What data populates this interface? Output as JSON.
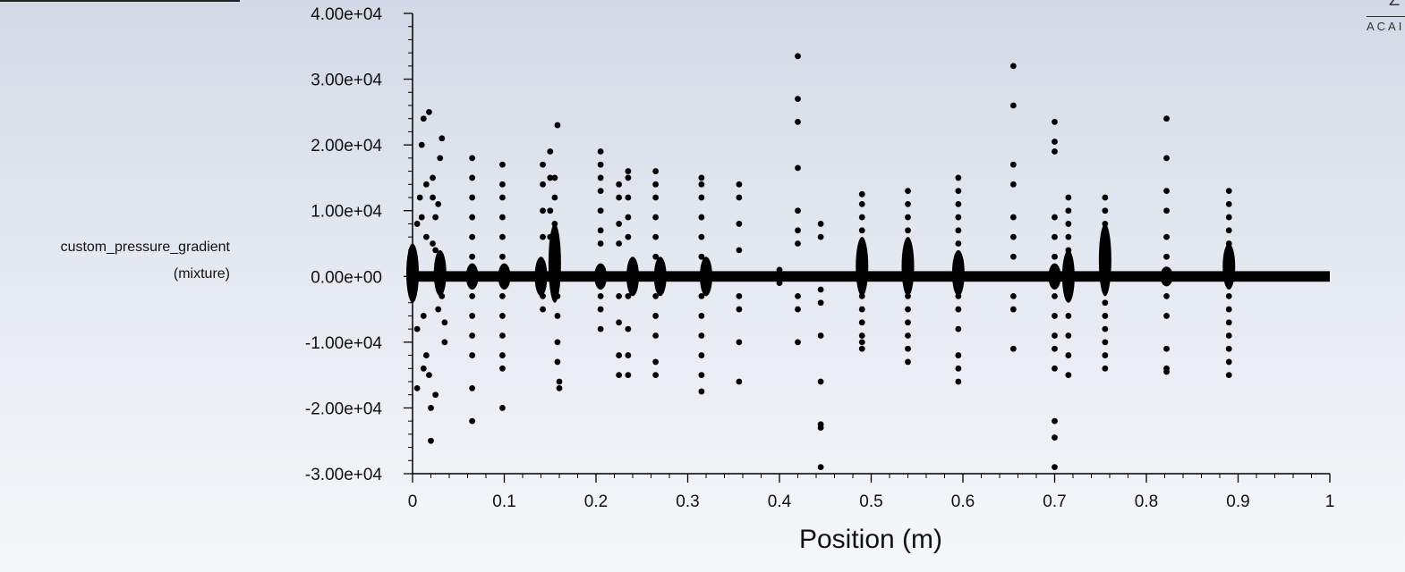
{
  "ylabel_lines": [
    "custom_pressure_gradient",
    "(mixture)"
  ],
  "corner_logo": {
    "top": "Z",
    "bottom": "ACAI"
  },
  "chart_data": {
    "type": "scatter",
    "title": "",
    "xlabel": "Position (m)",
    "ylabel": "custom_pressure_gradient (mixture)",
    "xlim": [
      0,
      1
    ],
    "ylim": [
      -30000,
      40000
    ],
    "x_ticks": [
      0,
      0.1,
      0.2,
      0.3,
      0.4,
      0.5,
      0.6,
      0.7,
      0.8,
      0.9,
      1
    ],
    "x_tick_labels": [
      "0",
      "0.1",
      "0.2",
      "0.3",
      "0.4",
      "0.5",
      "0.6",
      "0.7",
      "0.8",
      "0.9",
      "1"
    ],
    "y_ticks": [
      -30000,
      -20000,
      -10000,
      0,
      10000,
      20000,
      30000,
      40000
    ],
    "y_tick_labels": [
      "-3.00e+04",
      "-2.00e+04",
      "-1.00e+04",
      "0.00e+00",
      "1.00e+04",
      "2.00e+04",
      "3.00e+04",
      "4.00e+04"
    ],
    "marker_color": "#000000",
    "grid": false,
    "legend": "none",
    "baseline": {
      "x_range": [
        0,
        1
      ],
      "y": 0,
      "band_amplitude": 800
    },
    "x": [
      0.005,
      0.005,
      0.008,
      0.01,
      0.012,
      0.015,
      0.018,
      0.02,
      0.022,
      0.025,
      0.028,
      0.03,
      0.032,
      0.035,
      0.01,
      0.012,
      0.015,
      0.018,
      0.02,
      0.022,
      0.025,
      0.028,
      0.03,
      0.032,
      0.005,
      0.015,
      0.025,
      0.035,
      0.012,
      0.022,
      0.065,
      0.065,
      0.065,
      0.065,
      0.065,
      0.065,
      0.065,
      0.065,
      0.065,
      0.065,
      0.065,
      0.065,
      0.098,
      0.098,
      0.098,
      0.098,
      0.098,
      0.098,
      0.098,
      0.098,
      0.098,
      0.098,
      0.098,
      0.098,
      0.142,
      0.142,
      0.142,
      0.142,
      0.142,
      0.142,
      0.15,
      0.15,
      0.15,
      0.15,
      0.155,
      0.155,
      0.155,
      0.158,
      0.158,
      0.158,
      0.158,
      0.158,
      0.16,
      0.16,
      0.205,
      0.205,
      0.205,
      0.205,
      0.205,
      0.205,
      0.205,
      0.205,
      0.205,
      0.205,
      0.225,
      0.225,
      0.225,
      0.225,
      0.225,
      0.225,
      0.225,
      0.225,
      0.235,
      0.235,
      0.235,
      0.235,
      0.235,
      0.235,
      0.235,
      0.235,
      0.235,
      0.265,
      0.265,
      0.265,
      0.265,
      0.265,
      0.265,
      0.265,
      0.265,
      0.265,
      0.265,
      0.265,
      0.315,
      0.315,
      0.315,
      0.315,
      0.315,
      0.315,
      0.315,
      0.315,
      0.315,
      0.315,
      0.315,
      0.315,
      0.356,
      0.356,
      0.356,
      0.356,
      0.356,
      0.356,
      0.356,
      0.356,
      0.4,
      0.4,
      0.4,
      0.42,
      0.42,
      0.42,
      0.42,
      0.42,
      0.42,
      0.42,
      0.42,
      0.42,
      0.42,
      0.445,
      0.445,
      0.445,
      0.445,
      0.445,
      0.445,
      0.445,
      0.445,
      0.445,
      0.49,
      0.49,
      0.49,
      0.49,
      0.49,
      0.49,
      0.49,
      0.49,
      0.49,
      0.49,
      0.49,
      0.49,
      0.54,
      0.54,
      0.54,
      0.54,
      0.54,
      0.54,
      0.54,
      0.54,
      0.54,
      0.54,
      0.54,
      0.54,
      0.595,
      0.595,
      0.595,
      0.595,
      0.595,
      0.595,
      0.595,
      0.595,
      0.595,
      0.595,
      0.595,
      0.595,
      0.655,
      0.655,
      0.655,
      0.655,
      0.655,
      0.655,
      0.655,
      0.655,
      0.655,
      0.655,
      0.7,
      0.7,
      0.7,
      0.7,
      0.7,
      0.7,
      0.7,
      0.7,
      0.7,
      0.7,
      0.7,
      0.7,
      0.7,
      0.7,
      0.715,
      0.715,
      0.715,
      0.715,
      0.715,
      0.715,
      0.715,
      0.715,
      0.715,
      0.715,
      0.755,
      0.755,
      0.755,
      0.755,
      0.755,
      0.755,
      0.755,
      0.755,
      0.755,
      0.755,
      0.755,
      0.755,
      0.755,
      0.822,
      0.822,
      0.822,
      0.822,
      0.822,
      0.822,
      0.822,
      0.822,
      0.822,
      0.822,
      0.822,
      0.89,
      0.89,
      0.89,
      0.89,
      0.89,
      0.89,
      0.89,
      0.89,
      0.89,
      0.89,
      0.89,
      0.89,
      0.89
    ],
    "y": [
      8000,
      -8000,
      12000,
      20000,
      24000,
      -12000,
      25000,
      -25000,
      15000,
      -18000,
      11000,
      18000,
      21000,
      -10000,
      9000,
      -6000,
      6000,
      -15000,
      -20000,
      5000,
      4000,
      -5000,
      3000,
      -3000,
      -17000,
      14000,
      9000,
      -7000,
      -14000,
      12000,
      18000,
      15000,
      12000,
      9000,
      6000,
      3000,
      -3000,
      -6000,
      -9000,
      -12000,
      -17000,
      -22000,
      17000,
      14000,
      12000,
      9000,
      6000,
      3000,
      -3000,
      -6000,
      -9000,
      -12000,
      -14000,
      -20000,
      17000,
      14000,
      10000,
      6000,
      -3000,
      -5000,
      19000,
      15000,
      10000,
      6000,
      15000,
      12000,
      8000,
      23000,
      -3000,
      -6000,
      -10000,
      -13000,
      -16000,
      -17000,
      19000,
      17000,
      15000,
      13000,
      10000,
      7000,
      5000,
      -3000,
      -5000,
      -8000,
      14000,
      12000,
      8000,
      5000,
      -3000,
      -7000,
      -12000,
      -15000,
      16000,
      15000,
      12000,
      9000,
      6000,
      -3000,
      -8000,
      -12000,
      -15000,
      16000,
      14000,
      12000,
      9000,
      6000,
      3000,
      -3000,
      -6000,
      -9000,
      -13000,
      -15000,
      15000,
      14000,
      12000,
      9000,
      6000,
      3000,
      -3000,
      -6000,
      -9000,
      -12000,
      -15000,
      -17500,
      14000,
      12000,
      8000,
      4000,
      -3000,
      -5000,
      -10000,
      -16000,
      1000,
      -1000,
      500,
      33500,
      27000,
      23500,
      16500,
      10000,
      7000,
      5000,
      -3000,
      -5000,
      -10000,
      8000,
      6000,
      -2000,
      -4000,
      -9000,
      -16000,
      -22500,
      -23000,
      -29000,
      12500,
      11000,
      9000,
      7000,
      5000,
      3000,
      -3000,
      -5000,
      -7000,
      -9000,
      -10000,
      -11000,
      13000,
      11000,
      9000,
      7000,
      5000,
      3000,
      -3000,
      -5000,
      -7000,
      -9000,
      -11000,
      -13000,
      15000,
      13000,
      11000,
      9000,
      7000,
      5000,
      -3000,
      -5000,
      -8000,
      -12000,
      -14000,
      -16000,
      32000,
      26000,
      17000,
      14000,
      9000,
      6000,
      3000,
      -3000,
      -5000,
      -11000,
      23500,
      20500,
      19000,
      9000,
      6000,
      3000,
      -3000,
      -6000,
      -9000,
      -11000,
      -14000,
      -22000,
      -24500,
      -29000,
      12000,
      10000,
      8000,
      6000,
      4000,
      -3000,
      -6000,
      -9000,
      -12000,
      -15000,
      12000,
      10000,
      8000,
      6000,
      4000,
      2000,
      -2000,
      -4000,
      -6000,
      -8000,
      -10000,
      -12000,
      -14000,
      24000,
      18000,
      13000,
      10000,
      6000,
      3000,
      -3000,
      -6000,
      -11000,
      -14000,
      -14500,
      13000,
      11000,
      9000,
      7000,
      5000,
      3000,
      -3000,
      -5000,
      -7000,
      -9000,
      -11000,
      -13000,
      -15000
    ],
    "dense_bursts": [
      {
        "x": 0.0,
        "y_range": [
          -4000,
          5000
        ]
      },
      {
        "x": 0.03,
        "y_range": [
          -3000,
          4000
        ]
      },
      {
        "x": 0.065,
        "y_range": [
          -2000,
          2000
        ]
      },
      {
        "x": 0.1,
        "y_range": [
          -2000,
          2000
        ]
      },
      {
        "x": 0.14,
        "y_range": [
          -3000,
          3000
        ]
      },
      {
        "x": 0.155,
        "y_range": [
          -4000,
          8000
        ]
      },
      {
        "x": 0.205,
        "y_range": [
          -2000,
          2000
        ]
      },
      {
        "x": 0.24,
        "y_range": [
          -3000,
          3000
        ]
      },
      {
        "x": 0.27,
        "y_range": [
          -3000,
          3000
        ]
      },
      {
        "x": 0.32,
        "y_range": [
          -3000,
          3000
        ]
      },
      {
        "x": 0.49,
        "y_range": [
          -3000,
          6000
        ]
      },
      {
        "x": 0.54,
        "y_range": [
          -3000,
          6000
        ]
      },
      {
        "x": 0.595,
        "y_range": [
          -3000,
          4000
        ]
      },
      {
        "x": 0.7,
        "y_range": [
          -2000,
          2000
        ]
      },
      {
        "x": 0.715,
        "y_range": [
          -4000,
          4000
        ]
      },
      {
        "x": 0.755,
        "y_range": [
          -3000,
          8000
        ]
      },
      {
        "x": 0.822,
        "y_range": [
          -1500,
          1500
        ]
      },
      {
        "x": 0.89,
        "y_range": [
          -2000,
          5000
        ]
      }
    ]
  }
}
